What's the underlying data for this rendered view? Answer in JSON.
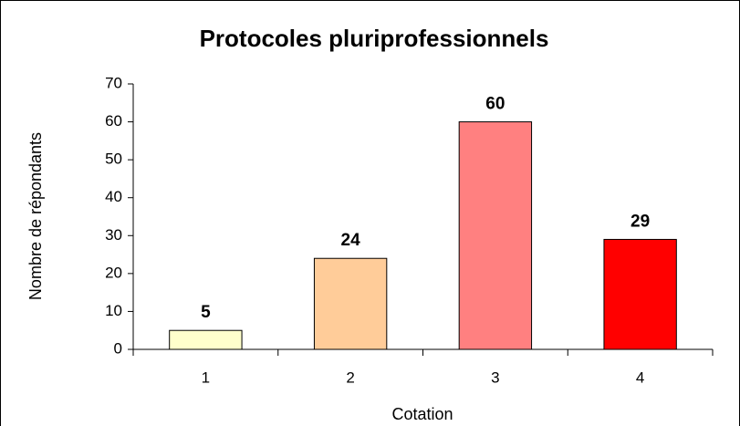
{
  "chart_data": {
    "type": "bar",
    "title": "Protocoles pluriprofessionnels",
    "x_label": "Cotation",
    "y_label": "Nombre de répondants",
    "categories": [
      "1",
      "2",
      "3",
      "4"
    ],
    "values": [
      5,
      24,
      60,
      29
    ],
    "colors": [
      "#ffffcc",
      "#ffcc99",
      "#ff8080",
      "#ff0000"
    ],
    "ylim": [
      0,
      70
    ],
    "yticks": [
      0,
      10,
      20,
      30,
      40,
      50,
      60,
      70
    ],
    "grid": false
  }
}
